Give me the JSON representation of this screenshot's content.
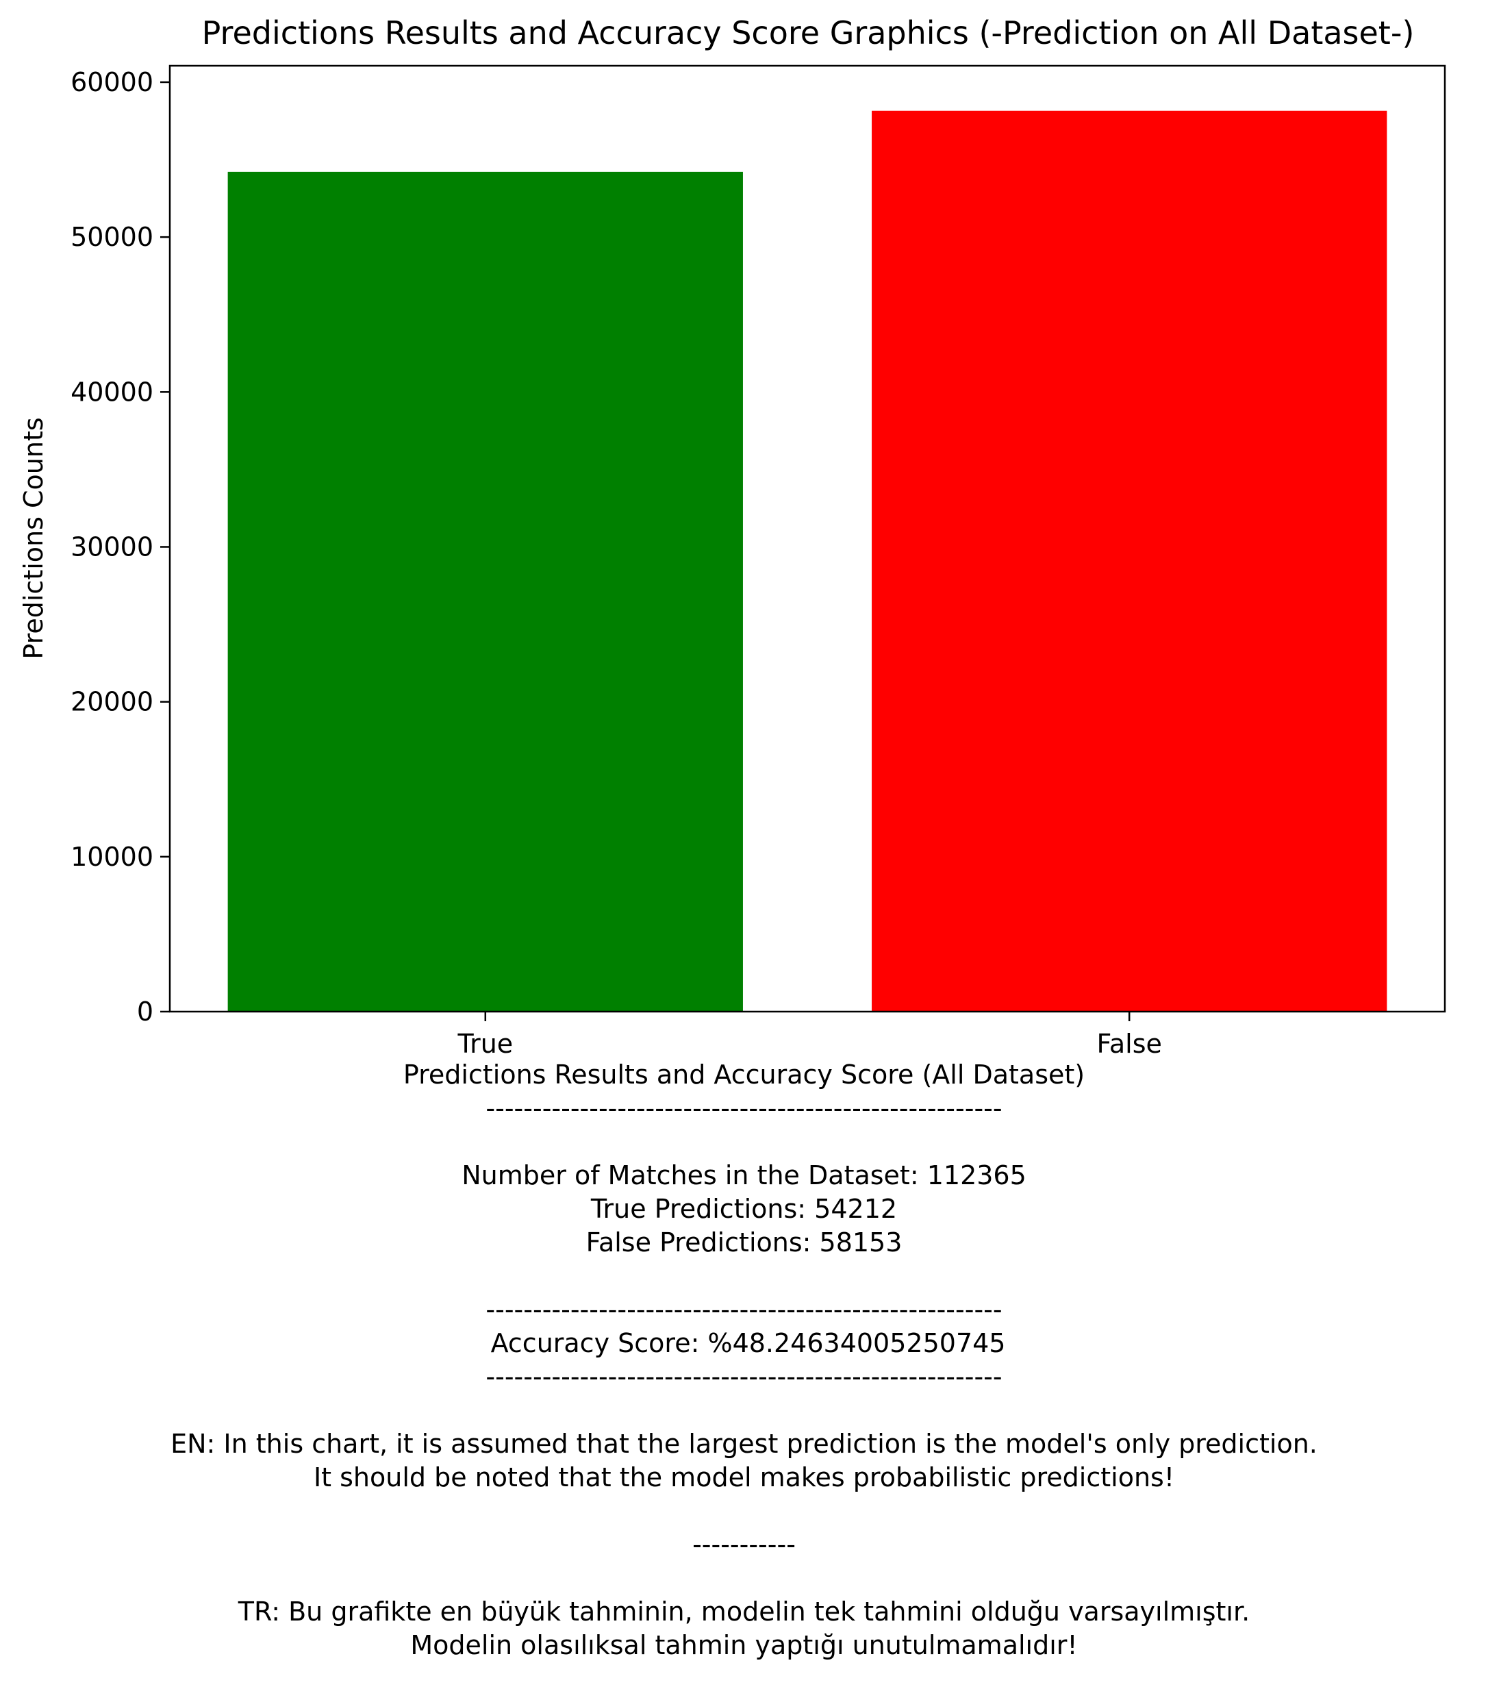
{
  "chart_data": {
    "type": "bar",
    "title": "Predictions Results and Accuracy Score Graphics (-Prediction on All Dataset-)",
    "ylabel": "Predictions Counts",
    "categories": [
      "True",
      "False"
    ],
    "values": [
      54212,
      58153
    ],
    "colors": [
      "#008000",
      "#ff0000"
    ],
    "ylim": [
      0,
      61060
    ],
    "yticks": [
      0,
      10000,
      20000,
      30000,
      40000,
      50000,
      60000
    ],
    "grid": false,
    "xlabel_lines": [
      "Predictions Results and Accuracy Score (All Dataset)",
      "-------------------------------------------------------",
      "",
      "Number of Matches in the Dataset: 112365",
      "True Predictions: 54212",
      "False Predictions: 58153",
      "",
      "-------------------------------------------------------",
      " Accuracy Score: %48.24634005250745",
      "-------------------------------------------------------",
      "",
      "EN: In this chart, it is assumed that the largest prediction is the model's only prediction.",
      "It should be noted that the model makes probabilistic predictions!",
      "",
      "-----------",
      "",
      "TR: Bu grafikte en büyük tahminin, modelin tek tahmini olduğu varsayılmıştır.",
      "Modelin olasılıksal tahmin yaptığı unutulmamalıdır!"
    ]
  }
}
